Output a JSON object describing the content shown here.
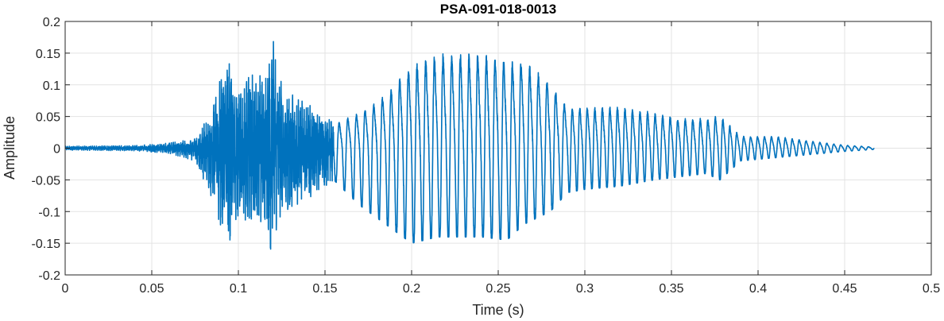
{
  "chart_data": {
    "type": "line",
    "title": "PSA-091-018-0013",
    "xlabel": "Time (s)",
    "ylabel": "Amplitude",
    "xlim": [
      0,
      0.5
    ],
    "ylim": [
      -0.2,
      0.2
    ],
    "xticks": [
      0,
      0.05,
      0.1,
      0.15,
      0.2,
      0.25,
      0.3,
      0.35,
      0.4,
      0.45,
      0.5
    ],
    "xtick_labels": [
      "0",
      "0.05",
      "0.1",
      "0.15",
      "0.2",
      "0.25",
      "0.3",
      "0.35",
      "0.4",
      "0.45",
      "0.5"
    ],
    "yticks": [
      0.2,
      0.15,
      0.1,
      0.05,
      0,
      -0.05,
      -0.1,
      -0.15,
      -0.2
    ],
    "ytick_labels": [
      "0.2",
      "0.15",
      "0.1",
      "0.05",
      "0",
      "-0.05",
      "-0.1",
      "-0.15",
      "-0.2"
    ],
    "grid": true,
    "series_color": "#0072BD",
    "signal_duration_s": 0.467,
    "envelope": {
      "t": [
        0,
        0.04,
        0.06,
        0.075,
        0.085,
        0.093,
        0.1,
        0.108,
        0.116,
        0.118,
        0.125,
        0.135,
        0.145,
        0.155,
        0.17,
        0.185,
        0.2,
        0.215,
        0.225,
        0.24,
        0.255,
        0.265,
        0.28,
        0.29,
        0.3,
        0.32,
        0.34,
        0.355,
        0.37,
        0.378,
        0.39,
        0.41,
        0.43,
        0.45,
        0.467
      ],
      "max": [
        0.003,
        0.004,
        0.008,
        0.015,
        0.06,
        0.15,
        0.09,
        0.12,
        0.11,
        0.2,
        0.1,
        0.08,
        0.06,
        0.04,
        0.06,
        0.09,
        0.14,
        0.16,
        0.16,
        0.16,
        0.15,
        0.15,
        0.11,
        0.07,
        0.07,
        0.07,
        0.06,
        0.05,
        0.05,
        0.055,
        0.02,
        0.02,
        0.012,
        0.005,
        0.002
      ],
      "min": [
        -0.003,
        -0.004,
        -0.008,
        -0.02,
        -0.08,
        -0.16,
        -0.11,
        -0.12,
        -0.12,
        -0.165,
        -0.1,
        -0.09,
        -0.07,
        -0.05,
        -0.09,
        -0.12,
        -0.15,
        -0.14,
        -0.14,
        -0.14,
        -0.145,
        -0.12,
        -0.1,
        -0.07,
        -0.065,
        -0.06,
        -0.05,
        -0.045,
        -0.04,
        -0.05,
        -0.02,
        -0.015,
        -0.01,
        -0.005,
        -0.002
      ]
    }
  }
}
